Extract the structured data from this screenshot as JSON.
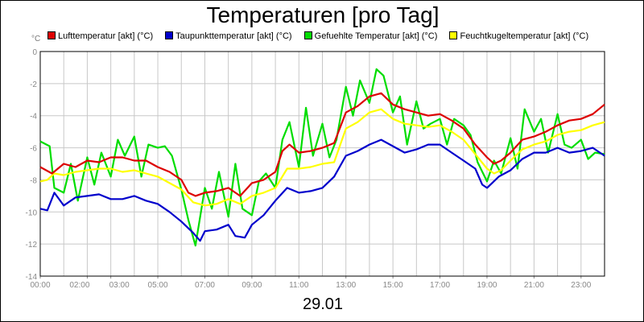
{
  "chart_data": {
    "type": "line",
    "title": "Temperaturen [pro Tag]",
    "xlabel": "29.01",
    "yunit": "°C",
    "ylim": [
      -14,
      0
    ],
    "yticks": [
      0,
      -2,
      -4,
      -6,
      -8,
      -10,
      -12,
      -14
    ],
    "xlim": [
      0,
      24
    ],
    "xticks": [
      {
        "v": 0,
        "label": "00:00"
      },
      {
        "v": 2,
        "label": "02:00"
      },
      {
        "v": 3,
        "label": "03:00"
      },
      {
        "v": 5,
        "label": "05:00"
      },
      {
        "v": 7,
        "label": "07:00"
      },
      {
        "v": 9,
        "label": "09:00"
      },
      {
        "v": 11,
        "label": "11:00"
      },
      {
        "v": 13,
        "label": "13:00"
      },
      {
        "v": 15,
        "label": "15:00"
      },
      {
        "v": 17,
        "label": "17:00"
      },
      {
        "v": 19,
        "label": "19:00"
      },
      {
        "v": 21,
        "label": "21:00"
      },
      {
        "v": 23,
        "label": "23:00"
      }
    ],
    "grid": true,
    "legend_position": "top",
    "series": [
      {
        "name": "Lufttemperatur [akt] (°C)",
        "color": "#dd0000",
        "points": [
          [
            0,
            -7.2
          ],
          [
            0.5,
            -7.6
          ],
          [
            1,
            -7.0
          ],
          [
            1.5,
            -7.2
          ],
          [
            2,
            -6.8
          ],
          [
            2.5,
            -6.9
          ],
          [
            3,
            -6.6
          ],
          [
            3.5,
            -6.6
          ],
          [
            4,
            -6.8
          ],
          [
            4.5,
            -6.8
          ],
          [
            5,
            -7.2
          ],
          [
            5.5,
            -7.5
          ],
          [
            6,
            -8.0
          ],
          [
            6.3,
            -8.8
          ],
          [
            6.6,
            -9.0
          ],
          [
            7,
            -8.8
          ],
          [
            7.5,
            -8.7
          ],
          [
            8,
            -8.5
          ],
          [
            8.5,
            -9.0
          ],
          [
            9,
            -8.2
          ],
          [
            9.5,
            -8.0
          ],
          [
            10,
            -7.5
          ],
          [
            10.3,
            -6.2
          ],
          [
            10.6,
            -5.8
          ],
          [
            11,
            -6.3
          ],
          [
            11.5,
            -6.2
          ],
          [
            12,
            -6.0
          ],
          [
            12.5,
            -5.7
          ],
          [
            13,
            -3.8
          ],
          [
            13.5,
            -3.4
          ],
          [
            14,
            -2.8
          ],
          [
            14.5,
            -2.6
          ],
          [
            15,
            -3.3
          ],
          [
            15.5,
            -3.6
          ],
          [
            16,
            -3.8
          ],
          [
            16.5,
            -4.0
          ],
          [
            17,
            -3.9
          ],
          [
            17.5,
            -4.3
          ],
          [
            18,
            -4.8
          ],
          [
            18.5,
            -5.8
          ],
          [
            19,
            -6.6
          ],
          [
            19.3,
            -7.0
          ],
          [
            19.6,
            -6.8
          ],
          [
            20,
            -6.3
          ],
          [
            20.5,
            -5.5
          ],
          [
            21,
            -5.3
          ],
          [
            21.5,
            -5.0
          ],
          [
            22,
            -4.6
          ],
          [
            22.5,
            -4.3
          ],
          [
            23,
            -4.2
          ],
          [
            23.5,
            -3.9
          ],
          [
            24,
            -3.3
          ]
        ]
      },
      {
        "name": "Taupunkttemperatur [akt] (°C)",
        "color": "#0000cc",
        "points": [
          [
            0,
            -9.8
          ],
          [
            0.3,
            -9.9
          ],
          [
            0.6,
            -8.8
          ],
          [
            1,
            -9.6
          ],
          [
            1.5,
            -9.1
          ],
          [
            2,
            -9.0
          ],
          [
            2.5,
            -8.9
          ],
          [
            3,
            -9.2
          ],
          [
            3.5,
            -9.2
          ],
          [
            4,
            -9.0
          ],
          [
            4.5,
            -9.3
          ],
          [
            5,
            -9.5
          ],
          [
            5.5,
            -10.0
          ],
          [
            6,
            -10.6
          ],
          [
            6.5,
            -11.3
          ],
          [
            6.8,
            -11.8
          ],
          [
            7,
            -11.2
          ],
          [
            7.5,
            -11.1
          ],
          [
            8,
            -10.8
          ],
          [
            8.3,
            -11.5
          ],
          [
            8.7,
            -11.6
          ],
          [
            9,
            -10.8
          ],
          [
            9.5,
            -10.2
          ],
          [
            10,
            -9.3
          ],
          [
            10.5,
            -8.5
          ],
          [
            11,
            -8.8
          ],
          [
            11.5,
            -8.7
          ],
          [
            12,
            -8.5
          ],
          [
            12.5,
            -7.8
          ],
          [
            13,
            -6.5
          ],
          [
            13.5,
            -6.2
          ],
          [
            14,
            -5.8
          ],
          [
            14.5,
            -5.5
          ],
          [
            15,
            -5.9
          ],
          [
            15.5,
            -6.3
          ],
          [
            16,
            -6.1
          ],
          [
            16.5,
            -5.8
          ],
          [
            17,
            -5.8
          ],
          [
            17.5,
            -6.3
          ],
          [
            18,
            -6.8
          ],
          [
            18.5,
            -7.3
          ],
          [
            18.8,
            -8.3
          ],
          [
            19,
            -8.5
          ],
          [
            19.5,
            -7.8
          ],
          [
            20,
            -7.4
          ],
          [
            20.5,
            -6.7
          ],
          [
            21,
            -6.3
          ],
          [
            21.5,
            -6.3
          ],
          [
            22,
            -6.0
          ],
          [
            22.5,
            -6.3
          ],
          [
            23,
            -6.2
          ],
          [
            23.5,
            -6.0
          ],
          [
            24,
            -6.5
          ]
        ]
      },
      {
        "name": "Gefuehlte Temperatur [akt] (°C)",
        "color": "#00dd00",
        "points": [
          [
            0,
            -5.6
          ],
          [
            0.4,
            -5.9
          ],
          [
            0.6,
            -8.5
          ],
          [
            1,
            -8.8
          ],
          [
            1.3,
            -7.0
          ],
          [
            1.6,
            -9.3
          ],
          [
            2,
            -6.6
          ],
          [
            2.3,
            -8.3
          ],
          [
            2.6,
            -6.3
          ],
          [
            3,
            -7.8
          ],
          [
            3.3,
            -5.5
          ],
          [
            3.6,
            -6.5
          ],
          [
            4,
            -5.3
          ],
          [
            4.3,
            -7.8
          ],
          [
            4.6,
            -5.8
          ],
          [
            5,
            -6.0
          ],
          [
            5.3,
            -5.9
          ],
          [
            5.6,
            -6.5
          ],
          [
            6,
            -8.6
          ],
          [
            6.3,
            -10.5
          ],
          [
            6.6,
            -12.1
          ],
          [
            7,
            -8.5
          ],
          [
            7.3,
            -9.8
          ],
          [
            7.6,
            -7.5
          ],
          [
            8,
            -10.3
          ],
          [
            8.3,
            -7.0
          ],
          [
            8.6,
            -9.8
          ],
          [
            9,
            -10.2
          ],
          [
            9.3,
            -8.1
          ],
          [
            9.6,
            -7.6
          ],
          [
            10,
            -8.5
          ],
          [
            10.3,
            -5.5
          ],
          [
            10.6,
            -4.4
          ],
          [
            11,
            -7.2
          ],
          [
            11.3,
            -3.5
          ],
          [
            11.6,
            -6.5
          ],
          [
            12,
            -4.5
          ],
          [
            12.3,
            -6.6
          ],
          [
            12.6,
            -5.5
          ],
          [
            13,
            -2.2
          ],
          [
            13.3,
            -4.0
          ],
          [
            13.6,
            -1.8
          ],
          [
            14,
            -3.2
          ],
          [
            14.3,
            -1.1
          ],
          [
            14.6,
            -1.5
          ],
          [
            15,
            -3.8
          ],
          [
            15.3,
            -2.8
          ],
          [
            15.6,
            -5.8
          ],
          [
            16,
            -3.1
          ],
          [
            16.3,
            -4.8
          ],
          [
            16.6,
            -4.5
          ],
          [
            17,
            -4.2
          ],
          [
            17.3,
            -5.8
          ],
          [
            17.6,
            -4.2
          ],
          [
            18,
            -4.6
          ],
          [
            18.3,
            -5.2
          ],
          [
            18.6,
            -6.9
          ],
          [
            19,
            -8.1
          ],
          [
            19.3,
            -6.8
          ],
          [
            19.6,
            -7.6
          ],
          [
            20,
            -5.4
          ],
          [
            20.3,
            -7.3
          ],
          [
            20.6,
            -3.6
          ],
          [
            21,
            -5.0
          ],
          [
            21.3,
            -4.2
          ],
          [
            21.6,
            -6.3
          ],
          [
            22,
            -3.9
          ],
          [
            22.3,
            -5.8
          ],
          [
            22.6,
            -6.0
          ],
          [
            23,
            -5.5
          ],
          [
            23.3,
            -6.7
          ],
          [
            23.6,
            -6.3
          ],
          [
            24,
            -6.4
          ]
        ]
      },
      {
        "name": "Feuchtkugeltemperatur [akt] (°C)",
        "color": "#ffff00",
        "points": [
          [
            0,
            -8.1
          ],
          [
            0.3,
            -8.0
          ],
          [
            0.6,
            -7.6
          ],
          [
            1,
            -7.7
          ],
          [
            1.5,
            -7.5
          ],
          [
            2,
            -7.4
          ],
          [
            2.5,
            -7.3
          ],
          [
            3,
            -7.3
          ],
          [
            3.5,
            -7.5
          ],
          [
            4,
            -7.4
          ],
          [
            4.5,
            -7.6
          ],
          [
            5,
            -7.8
          ],
          [
            5.5,
            -8.2
          ],
          [
            6,
            -8.6
          ],
          [
            6.5,
            -9.4
          ],
          [
            7,
            -9.6
          ],
          [
            7.5,
            -9.5
          ],
          [
            8,
            -9.2
          ],
          [
            8.5,
            -9.5
          ],
          [
            9,
            -9.0
          ],
          [
            9.5,
            -8.8
          ],
          [
            10,
            -8.5
          ],
          [
            10.5,
            -7.3
          ],
          [
            11,
            -7.3
          ],
          [
            11.5,
            -7.2
          ],
          [
            12,
            -7.0
          ],
          [
            12.5,
            -6.9
          ],
          [
            13,
            -4.8
          ],
          [
            13.5,
            -4.4
          ],
          [
            14,
            -3.8
          ],
          [
            14.5,
            -3.6
          ],
          [
            15,
            -4.2
          ],
          [
            15.5,
            -4.5
          ],
          [
            16,
            -4.6
          ],
          [
            16.5,
            -4.7
          ],
          [
            17,
            -4.6
          ],
          [
            17.5,
            -5.0
          ],
          [
            18,
            -5.5
          ],
          [
            18.5,
            -6.4
          ],
          [
            19,
            -7.3
          ],
          [
            19.3,
            -7.6
          ],
          [
            19.6,
            -7.4
          ],
          [
            20,
            -6.8
          ],
          [
            20.5,
            -6.1
          ],
          [
            21,
            -5.8
          ],
          [
            21.5,
            -5.6
          ],
          [
            22,
            -5.2
          ],
          [
            22.5,
            -5.0
          ],
          [
            23,
            -4.9
          ],
          [
            23.5,
            -4.6
          ],
          [
            24,
            -4.4
          ]
        ]
      }
    ]
  }
}
